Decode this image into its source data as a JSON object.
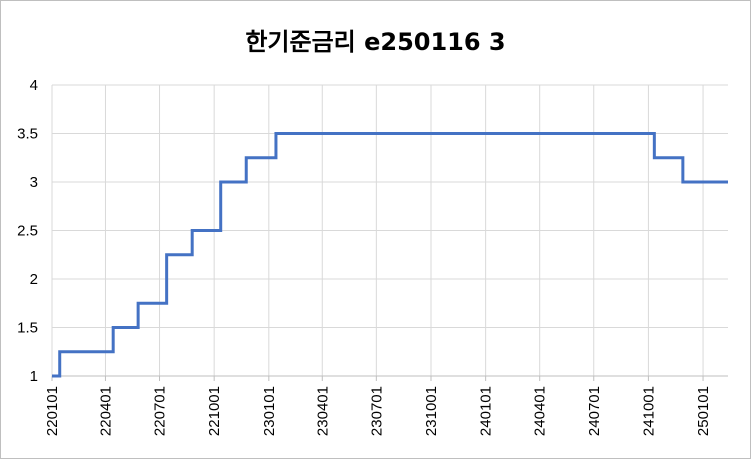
{
  "chart_data": {
    "type": "line",
    "title": "한기준금리 e250116  3",
    "xlabel": "",
    "ylabel": "",
    "ylim": [
      1,
      4
    ],
    "y_ticks": [
      "1",
      "1.5",
      "2",
      "2.5",
      "3",
      "3.5",
      "4"
    ],
    "x_ticks": [
      "220101",
      "220401",
      "220701",
      "221001",
      "230101",
      "230401",
      "230701",
      "231001",
      "240101",
      "240401",
      "240701",
      "241001",
      "250101"
    ],
    "grid": true,
    "legend": "none",
    "series": [
      {
        "color": "#4472c4",
        "step": true,
        "x": [
          "2022-01-01",
          "2022-01-14",
          "2022-04-14",
          "2022-05-26",
          "2022-07-13",
          "2022-08-25",
          "2022-10-12",
          "2022-11-24",
          "2023-01-13",
          "2024-10-11",
          "2024-11-28",
          "2025-01-16"
        ],
        "values": [
          1.0,
          1.25,
          1.5,
          1.75,
          2.25,
          2.5,
          3.0,
          3.25,
          3.5,
          3.25,
          3.0,
          3.0
        ]
      }
    ]
  }
}
